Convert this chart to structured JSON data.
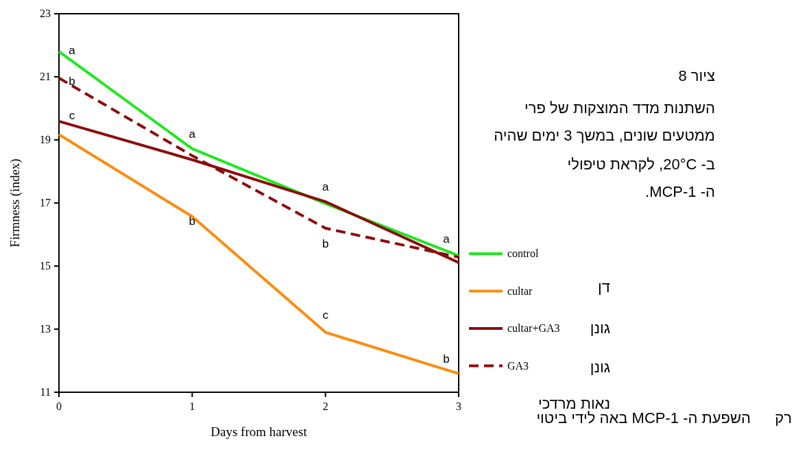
{
  "chart_data": {
    "type": "line",
    "title": "ציור 8",
    "xlabel": "Days from harvest",
    "ylabel": "Firmness (index)",
    "x": [
      0,
      1,
      2,
      3
    ],
    "xlim": [
      0,
      3
    ],
    "xticks": [
      0,
      1,
      2,
      3
    ],
    "ylim": [
      11,
      23
    ],
    "yticks": [
      11,
      13,
      15,
      17,
      19,
      21,
      23
    ],
    "grid": false,
    "legend": "right",
    "marker": "none",
    "series": [
      {
        "name": "control",
        "color": "#1ee81e",
        "values": [
          21.8,
          18.72,
          16.98,
          15.33
        ],
        "line_style": "solid"
      },
      {
        "name": "cultar",
        "color": "#fb8c0f",
        "values": [
          19.17,
          16.57,
          12.9,
          11.59
        ],
        "line_style": "solid"
      },
      {
        "name": "cultar+GA3",
        "color": "#8b0d0d",
        "values": [
          19.59,
          18.37,
          17.04,
          15.11
        ],
        "line_style": "solid"
      },
      {
        "name": "GA3",
        "color": "#8b0d0d",
        "values": [
          20.96,
          18.5,
          16.2,
          15.28
        ],
        "line_style": "dashed"
      }
    ],
    "annotations": [
      "השתנות מדד המוצקות של פרי",
      "ממטעים שונים, במשך 3 ימים שהיה",
      "ב- 20°C, לקראת טיפולי",
      "ה- 1-MCP.",
      "דן",
      "גונן",
      "גונן",
      "נאות מרדכי",
      "השפעת ה- 1-MCP באה לידי ביטוי",
      "רק",
      {
        "text": "a",
        "x": 0,
        "y": 21.8
      },
      {
        "text": "b",
        "x": 0,
        "y": 20.96
      },
      {
        "text": "c",
        "x": 0,
        "y": 19.59
      },
      {
        "text": "a",
        "x": 1,
        "y": 18.72
      },
      {
        "text": "b",
        "x": 1,
        "y": 16.57
      },
      {
        "text": "a",
        "x": 2,
        "y": 16.98
      },
      {
        "text": "b",
        "x": 2,
        "y": 16.2
      },
      {
        "text": "c",
        "x": 2,
        "y": 12.9
      },
      {
        "text": "a",
        "x": 3,
        "y": 15.33
      },
      {
        "text": "b",
        "x": 3,
        "y": 11.59
      }
    ]
  }
}
